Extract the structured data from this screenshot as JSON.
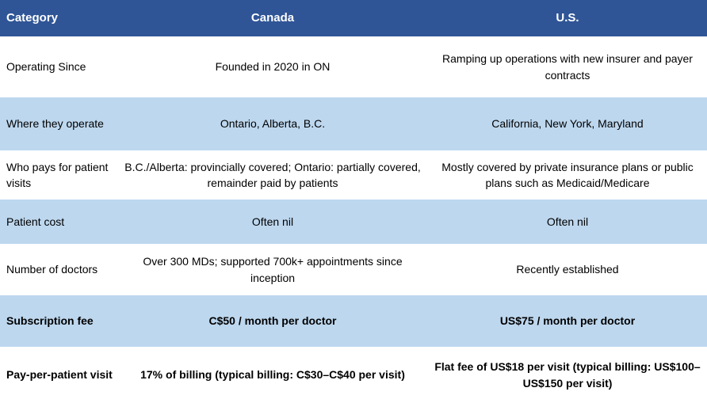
{
  "table": {
    "columns": [
      {
        "key": "category",
        "label": "Category"
      },
      {
        "key": "canada",
        "label": "Canada"
      },
      {
        "key": "us",
        "label": "U.S."
      }
    ],
    "rows": [
      {
        "category": "Operating Since",
        "canada": "Founded in 2020 in ON",
        "us": "Ramping up operations with new insurer and payer contracts",
        "shaded": false,
        "bold": false
      },
      {
        "category": "Where they operate",
        "canada": "Ontario, Alberta, B.C.",
        "us": "California, New York, Maryland",
        "shaded": true,
        "bold": false
      },
      {
        "category": "Who pays for patient visits",
        "canada": "B.C./Alberta: provincially covered; Ontario: partially covered, remainder paid by patients",
        "us": "Mostly covered by private insurance plans or public plans such as Medicaid/Medicare",
        "shaded": false,
        "bold": false
      },
      {
        "category": "Patient cost",
        "canada": "Often nil",
        "us": "Often nil",
        "shaded": true,
        "bold": false
      },
      {
        "category": "Number of doctors",
        "canada": "Over 300 MDs; supported 700k+ appointments since inception",
        "us": "Recently established",
        "shaded": false,
        "bold": false
      },
      {
        "category": "Subscription fee",
        "canada": "C$50 / month per doctor",
        "us": "US$75 / month per doctor",
        "shaded": true,
        "bold": true
      },
      {
        "category": "Pay-per-patient visit",
        "canada": "17% of billing (typical billing: C$30–C$40 per visit)",
        "us": "Flat fee of US$18 per visit (typical billing: US$100–US$150 per visit)",
        "shaded": false,
        "bold": true
      }
    ]
  },
  "colors": {
    "header_bg": "#2F5597",
    "header_text": "#FFFFFF",
    "row_shaded_bg": "#BDD7EE",
    "row_plain_bg": "#FFFFFF",
    "body_text": "#000000"
  }
}
